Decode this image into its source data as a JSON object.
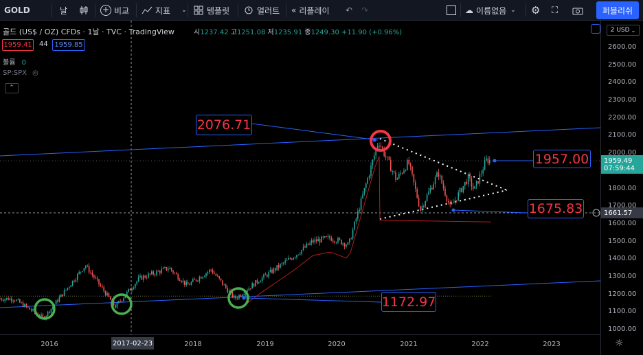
{
  "toolbar": {
    "symbol": "GOLD",
    "interval": "날",
    "compare": "비교",
    "indicators": "지표",
    "templates": "템플릿",
    "alert": "얼러트",
    "replay": "리플레이",
    "unnamed": "이름없음",
    "publish": "퍼블리쉬"
  },
  "legend": {
    "title": "골드 (US$ / OZ) CFDs · 1날 · TVC · TradingView",
    "o_label": "시",
    "o": "1237.42",
    "h_label": "고",
    "h": "1251.08",
    "l_label": "저",
    "l": "1235.91",
    "c_label": "종",
    "c": "1249.30",
    "change": "+11.90 (+0.96%)",
    "sell": "1959.41",
    "spread": "44",
    "buy": "1959.85",
    "volume_label": "볼륨",
    "volume_value": "0",
    "compare_symbol": "SP:SPX"
  },
  "currency": "2 USD",
  "price_axis": [
    "2600.00",
    "2500.00",
    "2400.00",
    "2300.00",
    "2200.00",
    "2100.00",
    "2000.00",
    "1900.00",
    "1800.00",
    "1700.00",
    "1600.00",
    "1500.00",
    "1400.00",
    "1300.00",
    "1200.00",
    "1100.00",
    "1000.00"
  ],
  "time_axis": [
    "2016",
    "2018",
    "2019",
    "2020",
    "2021",
    "2022",
    "2023"
  ],
  "crosshair_date": "2017-02-23",
  "last_price": "1959.49",
  "countdown": "07:59:44",
  "crosshair_price": "1661.57",
  "annotations": {
    "top": "2076.71",
    "current": "1957.00",
    "support": "1675.83",
    "bottom": "1172.97"
  },
  "colors": {
    "up": "#26a69a",
    "down": "#ef5350",
    "trendline": "#2962ff",
    "circle_green": "#4caf50",
    "circle_red": "#f23645",
    "label_red": "#f23645"
  },
  "chart_data": {
    "type": "candlestick",
    "x": [
      "2015-07",
      "2015-12",
      "2016-07",
      "2016-12",
      "2017-04",
      "2017-09",
      "2017-12",
      "2018-04",
      "2018-08",
      "2018-12",
      "2019-06",
      "2019-09",
      "2019-12",
      "2020-03",
      "2020-08",
      "2020-11",
      "2021-01",
      "2021-03",
      "2021-06",
      "2021-08",
      "2021-11",
      "2021-12",
      "2022-02"
    ],
    "close": [
      1175,
      1065,
      1365,
      1130,
      1290,
      1350,
      1250,
      1340,
      1175,
      1280,
      1420,
      1500,
      1520,
      1480,
      2070,
      1850,
      1950,
      1680,
      1890,
      1690,
      1860,
      1790,
      1960
    ],
    "ylim": [
      950,
      2680
    ],
    "annotations": [
      "2076.71",
      "1957.00",
      "1675.83",
      "1172.97"
    ]
  }
}
